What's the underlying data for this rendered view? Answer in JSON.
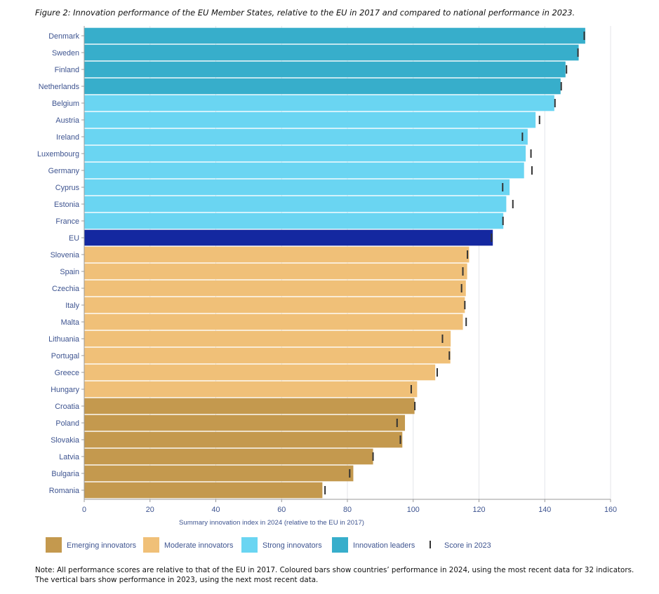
{
  "figure_title": "Figure 2: Innovation performance of the EU Member States, relative to the EU in 2017 and compared to national performance in 2023.",
  "note": "Note: All performance scores are relative to that of the EU in 2017. Coloured bars show countries’ performance in 2024, using the most recent data for 32 indicators. The vertical bars show performance in 2023, using the next most recent data.",
  "colors": {
    "emerging": "#c4994e",
    "moderate": "#f0c078",
    "strong": "#6ad5f2",
    "leader": "#37aecb",
    "eu": "#1428a0",
    "marker": "#333333",
    "grid": "#e4e6ea",
    "label": "#3e5490"
  },
  "chart_data": {
    "type": "bar",
    "orientation": "horizontal",
    "xlabel": "Summary innovation index in 2024 (relative to the EU in 2017)",
    "xlim": [
      0,
      160
    ],
    "xticks": [
      0,
      20,
      40,
      60,
      80,
      100,
      120,
      140,
      160
    ],
    "grid": true,
    "legend": [
      {
        "key": "emerging",
        "label": "Emerging innovators",
        "kind": "swatch"
      },
      {
        "key": "moderate",
        "label": "Moderate innovators",
        "kind": "swatch"
      },
      {
        "key": "strong",
        "label": "Strong innovators",
        "kind": "swatch"
      },
      {
        "key": "leader",
        "label": "Innovation leaders",
        "kind": "swatch"
      },
      {
        "key": "marker",
        "label": "Score in 2023",
        "kind": "marker"
      }
    ],
    "series": [
      {
        "name": "Score in 2024",
        "type": "bar"
      },
      {
        "name": "Score in 2023",
        "type": "marker"
      }
    ],
    "categories": [
      "Denmark",
      "Sweden",
      "Finland",
      "Netherlands",
      "Belgium",
      "Austria",
      "Ireland",
      "Luxembourg",
      "Germany",
      "Cyprus",
      "Estonia",
      "France",
      "EU",
      "Slovenia",
      "Spain",
      "Czechia",
      "Italy",
      "Malta",
      "Lithuania",
      "Portugal",
      "Greece",
      "Hungary",
      "Croatia",
      "Poland",
      "Slovakia",
      "Latvia",
      "Bulgaria",
      "Romania"
    ],
    "values_2024": [
      152.3,
      150.3,
      146.3,
      144.8,
      142.9,
      137.2,
      134.8,
      134.2,
      133.7,
      129.3,
      128.3,
      127.4,
      124.2,
      117.0,
      116.4,
      116.0,
      115.7,
      115.1,
      111.4,
      111.3,
      106.7,
      101.2,
      100.4,
      97.5,
      96.7,
      87.8,
      81.8,
      72.4
    ],
    "values_2023": [
      152.0,
      150.1,
      146.6,
      145.0,
      143.1,
      138.4,
      133.2,
      135.8,
      136.1,
      127.2,
      130.3,
      127.3,
      123.8,
      116.5,
      115.1,
      114.7,
      115.7,
      116.1,
      108.9,
      111.0,
      107.3,
      99.4,
      100.5,
      95.1,
      96.1,
      87.8,
      80.7,
      73.2
    ],
    "groups": [
      "leader",
      "leader",
      "leader",
      "leader",
      "strong",
      "strong",
      "strong",
      "strong",
      "strong",
      "strong",
      "strong",
      "strong",
      "eu",
      "moderate",
      "moderate",
      "moderate",
      "moderate",
      "moderate",
      "moderate",
      "moderate",
      "moderate",
      "moderate",
      "emerging",
      "emerging",
      "emerging",
      "emerging",
      "emerging",
      "emerging"
    ]
  }
}
